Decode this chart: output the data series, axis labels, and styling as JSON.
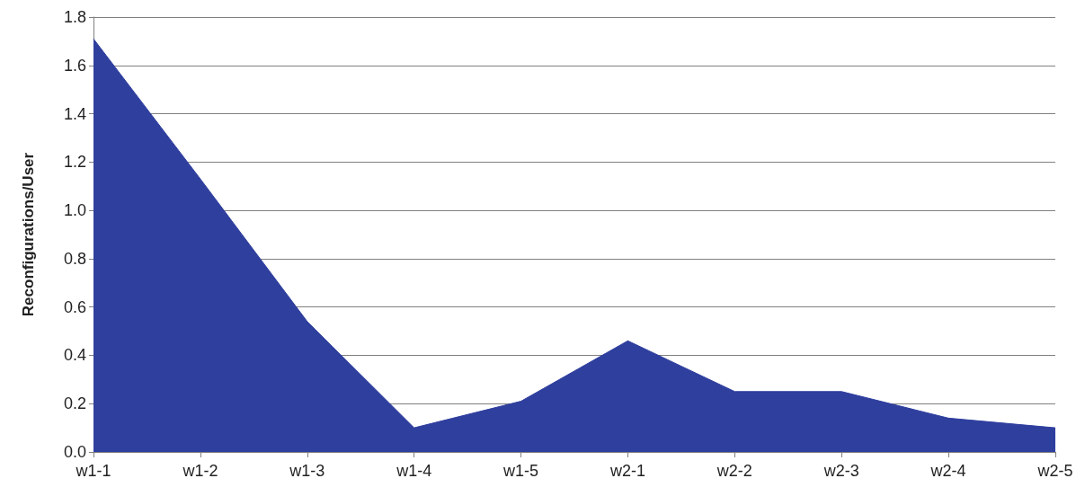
{
  "chart_data": {
    "type": "area",
    "ylabel": "Reconfigurations/User",
    "categories": [
      "w1-1",
      "w1-2",
      "w1-3",
      "w1-4",
      "w1-5",
      "w2-1",
      "w2-2",
      "w2-3",
      "w2-4",
      "w2-5"
    ],
    "series": [
      {
        "color": "#2f3f9e",
        "values": [
          1.71,
          1.13,
          0.54,
          0.1,
          0.21,
          0.46,
          0.25,
          0.25,
          0.14,
          0.1
        ]
      }
    ],
    "ylim": [
      0,
      1.8
    ],
    "yticks": [
      {
        "value": 0,
        "label": "0.0"
      },
      0.2,
      0.4,
      0.6,
      0.8,
      {
        "value": 1,
        "label": "1.0"
      },
      1.2,
      1.4,
      1.6,
      1.8
    ],
    "grid": "y"
  }
}
